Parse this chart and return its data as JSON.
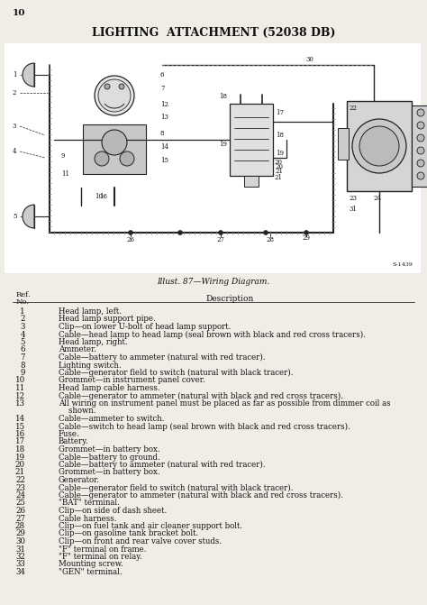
{
  "page_number": "10",
  "title": "LIGHTING  ATTACHMENT (52038 DB)",
  "diagram_caption": "Illust. 87—Wiring Diagram.",
  "ref_header_line1": "Ref.",
  "ref_header_line2": "No.",
  "desc_header": "Description",
  "caption_code": "S-1439",
  "items": [
    {
      "num": "1",
      "desc": "Head lamp, left."
    },
    {
      "num": "2",
      "desc": "Head lamp support pipe."
    },
    {
      "num": "3",
      "desc": "Clip—on lower U-bolt of head lamp support."
    },
    {
      "num": "4",
      "desc": "Cable—head lamp to head lamp (seal brown with black and red cross tracers)."
    },
    {
      "num": "5",
      "desc": "Head lamp, right."
    },
    {
      "num": "6",
      "desc": "Ammeter."
    },
    {
      "num": "7",
      "desc": "Cable—battery to ammeter (natural with red tracer)."
    },
    {
      "num": "8",
      "desc": "Lighting switch."
    },
    {
      "num": "9",
      "desc": "Cable—generator field to switch (natural with black tracer)."
    },
    {
      "num": "10",
      "desc": "Grommet—in instrument panel cover."
    },
    {
      "num": "11",
      "desc": "Head lamp cable harness."
    },
    {
      "num": "12",
      "desc": "Cable—generator to ammeter (natural with black and red cross tracers)."
    },
    {
      "num": "13",
      "desc": "All wiring on instrument panel must be placed as far as possible from dimmer coil as shown."
    },
    {
      "num": "14",
      "desc": "Cable—ammeter to switch."
    },
    {
      "num": "15",
      "desc": "Cable—switch to head lamp (seal brown with black and red cross tracers)."
    },
    {
      "num": "16",
      "desc": "Fuse."
    },
    {
      "num": "17",
      "desc": "Battery."
    },
    {
      "num": "18",
      "desc": "Grommet—in battery box."
    },
    {
      "num": "19",
      "desc": "Cable—battery to ground."
    },
    {
      "num": "20",
      "desc": "Cable—battery to ammeter (natural with red tracer)."
    },
    {
      "num": "21",
      "desc": "Grommet—in battery box."
    },
    {
      "num": "22",
      "desc": "Generator."
    },
    {
      "num": "23",
      "desc": "Cable—generator field to switch (natural with black tracer)."
    },
    {
      "num": "24",
      "desc": "Cable—generator to ammeter (natural with black and red cross tracers)."
    },
    {
      "num": "25",
      "desc": "\"BAT\" terminal."
    },
    {
      "num": "26",
      "desc": "Clip—on side of dash sheet."
    },
    {
      "num": "27",
      "desc": "Cable harness."
    },
    {
      "num": "28",
      "desc": "Clip—on fuel tank and air cleaner support bolt."
    },
    {
      "num": "29",
      "desc": "Clip—on gasoline tank bracket bolt."
    },
    {
      "num": "30",
      "desc": "Clip—on front and rear valve cover studs."
    },
    {
      "num": "31",
      "desc": "\"F\" terminal on frame."
    },
    {
      "num": "32",
      "desc": "\"F\" terminal on relay."
    },
    {
      "num": "33",
      "desc": "Mounting screw."
    },
    {
      "num": "34",
      "desc": "\"GEN\" terminal."
    }
  ],
  "bg_color": "#f0ede6",
  "text_color": "#111111",
  "diagram_bg": "#ffffff",
  "line_color": "#222222",
  "font_size_title": 9.0,
  "font_size_body": 6.2,
  "font_size_label": 5.0,
  "font_size_page": 7.5
}
